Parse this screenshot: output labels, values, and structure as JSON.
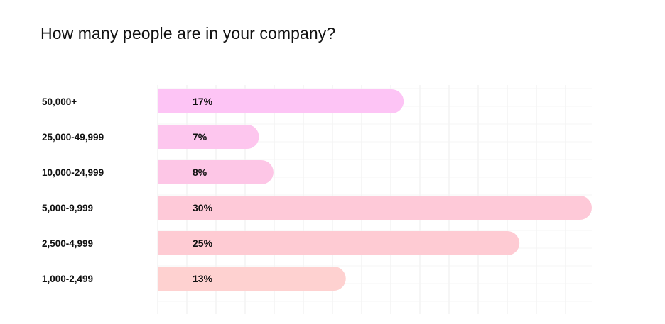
{
  "chart_data": {
    "type": "bar",
    "orientation": "horizontal",
    "title": "How many people are in your company?",
    "categories": [
      "50,000+",
      "25,000-49,999",
      "10,000-24,999",
      "5,000-9,999",
      "2,500-4,999",
      "1,000-2,499"
    ],
    "values": [
      17,
      7,
      8,
      30,
      25,
      13
    ],
    "value_labels": [
      "17%",
      "7%",
      "8%",
      "30%",
      "25%",
      "13%"
    ],
    "unit": "%",
    "xlim": [
      0,
      30
    ],
    "grid": true,
    "legend": "none",
    "bar_colors": [
      "#fdc4f5",
      "#fdc6ee",
      "#fdc6e6",
      "#fec9d8",
      "#fecbd3",
      "#fed1d0"
    ]
  }
}
